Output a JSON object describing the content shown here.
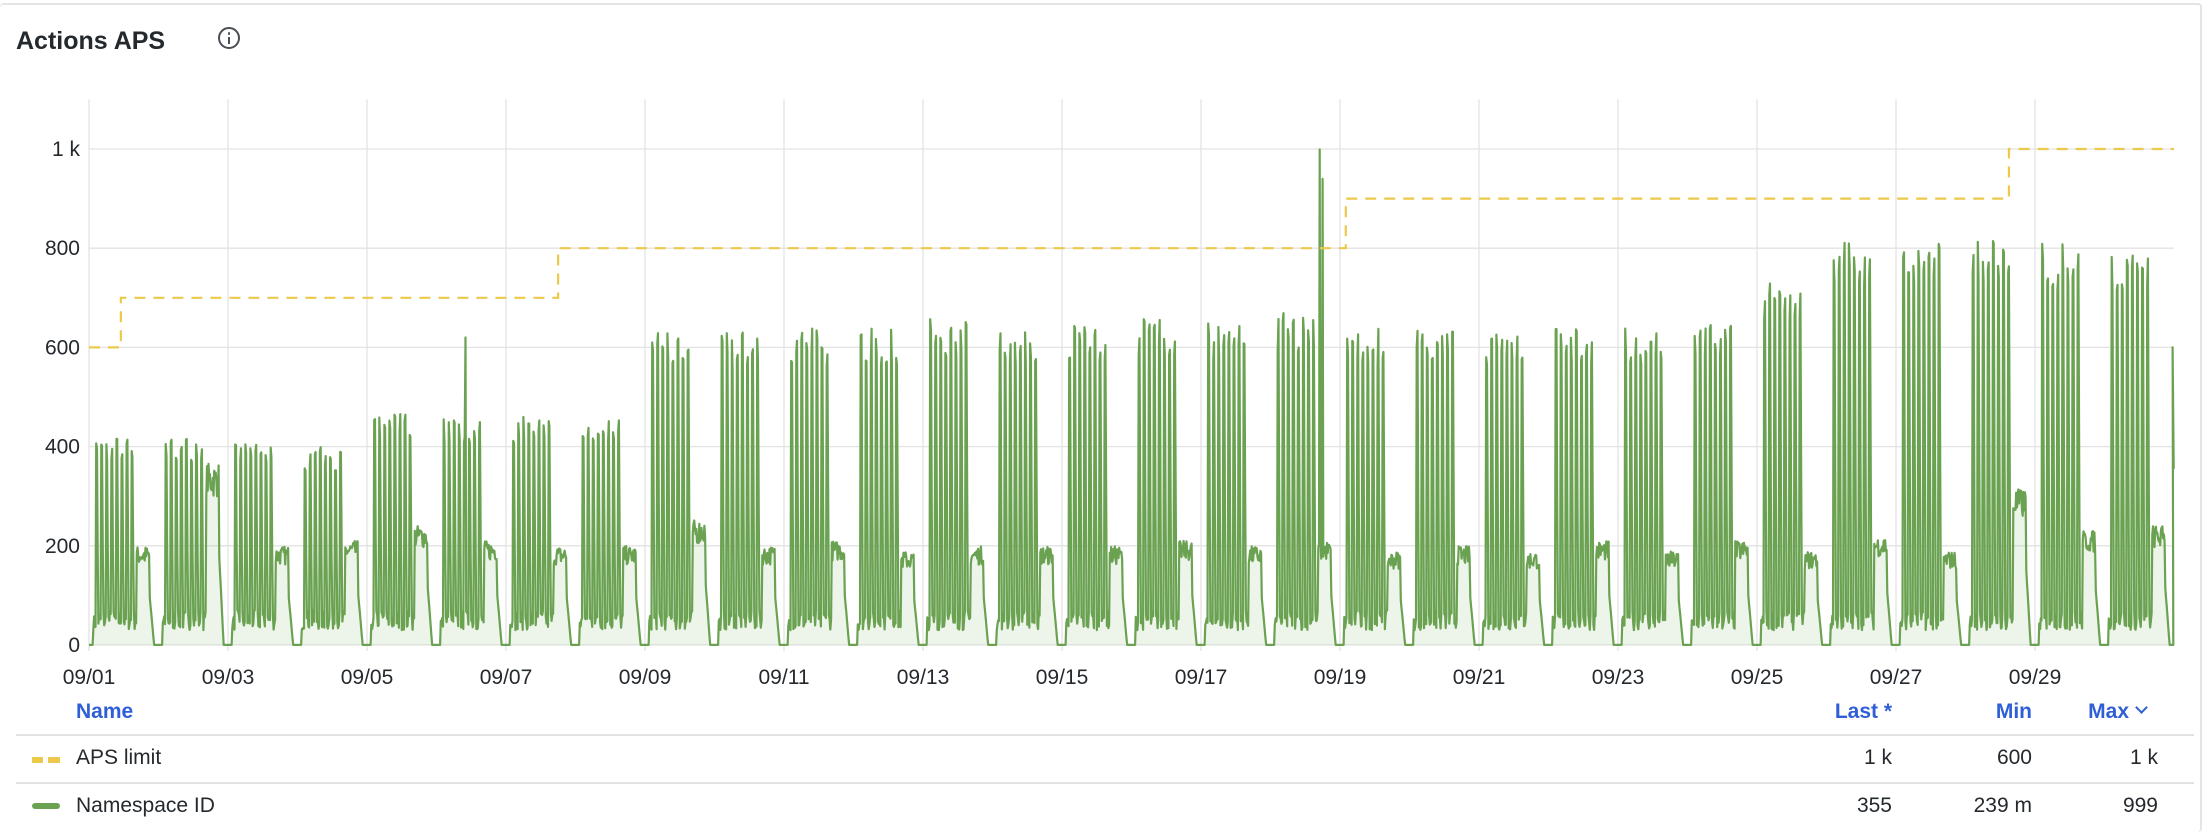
{
  "panel": {
    "title": "Actions APS",
    "info_icon": "info-circle-icon"
  },
  "legend": {
    "headers": {
      "name": "Name",
      "last": "Last *",
      "min": "Min",
      "max": "Max"
    },
    "rows": [
      {
        "name": "APS limit",
        "last": "1 k",
        "min": "600",
        "max": "1 k",
        "color": "#ecc94b",
        "style": "dashed"
      },
      {
        "name": "Namespace ID",
        "last": "355",
        "min": "239 m",
        "max": "999",
        "color": "#6aa252",
        "style": "solid"
      }
    ]
  },
  "chart_data": {
    "type": "line",
    "x_range": [
      "09/01 00:00",
      "10/01 00:00"
    ],
    "ylim": [
      0,
      1100
    ],
    "y_ticks": [
      "0",
      "200",
      "400",
      "600",
      "800",
      "1 k"
    ],
    "y_tick_values": [
      0,
      200,
      400,
      600,
      800,
      1000
    ],
    "x_ticks": [
      "09/01",
      "09/03",
      "09/05",
      "09/07",
      "09/09",
      "09/11",
      "09/13",
      "09/15",
      "09/17",
      "09/19",
      "09/21",
      "09/23",
      "09/25",
      "09/27",
      "09/29"
    ],
    "grid": true,
    "series": [
      {
        "name": "APS limit",
        "color": "#ecc94b",
        "dash": true,
        "steps": [
          {
            "from": "09/01 00:00",
            "value": 600
          },
          {
            "from": "09/01 11:00",
            "value": 700
          },
          {
            "from": "09/07 18:00",
            "value": 800
          },
          {
            "from": "09/19 02:00",
            "value": 900
          },
          {
            "from": "09/28 15:00",
            "value": 1000
          }
        ]
      },
      {
        "name": "Namespace ID",
        "color": "#6aa252",
        "daily_peak": [
          420,
          420,
          410,
          400,
          470,
          460,
          460,
          460,
          630,
          630,
          640,
          640,
          660,
          640,
          650,
          660,
          650,
          670,
          640,
          640,
          640,
          640,
          640,
          650,
          740,
          820,
          810,
          820,
          810,
          800
        ],
        "daily_tail": [
          190,
          350,
          190,
          200,
          230,
          200,
          190,
          190,
          240,
          190,
          200,
          180,
          190,
          190,
          190,
          200,
          190,
          200,
          180,
          190,
          180,
          200,
          180,
          200,
          180,
          210,
          180,
          300,
          220,
          230
        ],
        "spikes": [
          {
            "at": "09/06 10:00",
            "value": 620
          },
          {
            "at": "09/18 17:00",
            "value": 999
          },
          {
            "at": "09/18 18:00",
            "value": 940
          }
        ],
        "last": 355
      }
    ]
  }
}
